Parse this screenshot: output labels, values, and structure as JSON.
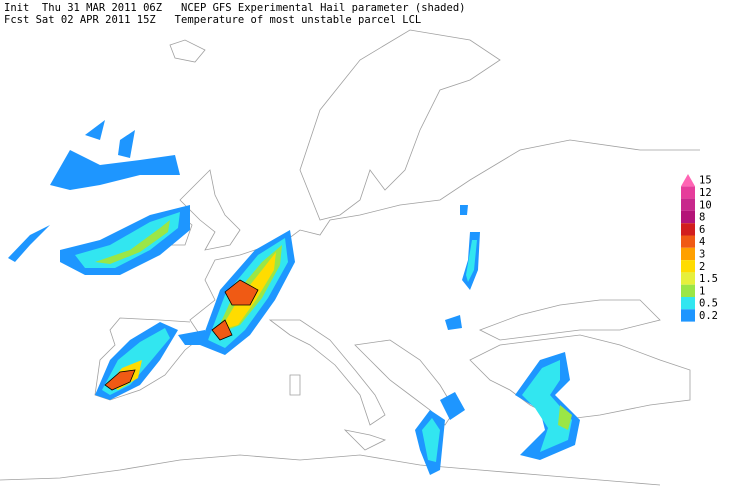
{
  "header": {
    "line1": "Init  Thu 31 MAR 2011 06Z   NCEP GFS Experimental Hail parameter (shaded)",
    "line2": "Fcst Sat 02 APR 2011 15Z   Temperature of most unstable parcel LCL"
  },
  "legend": [
    {
      "label": "15",
      "color": "#ff64b4"
    },
    {
      "label": "12",
      "color": "#e63c9b"
    },
    {
      "label": "10",
      "color": "#c8288c"
    },
    {
      "label": "8",
      "color": "#b41478"
    },
    {
      "label": "6",
      "color": "#d21e1e"
    },
    {
      "label": "4",
      "color": "#f05a14"
    },
    {
      "label": "3",
      "color": "#ffa000"
    },
    {
      "label": "2",
      "color": "#ffdc00"
    },
    {
      "label": "1.5",
      "color": "#e6f03c"
    },
    {
      "label": "1",
      "color": "#9be646"
    },
    {
      "label": "0.5",
      "color": "#32e6f0"
    },
    {
      "label": "0.2",
      "color": "#1e96ff"
    }
  ]
}
